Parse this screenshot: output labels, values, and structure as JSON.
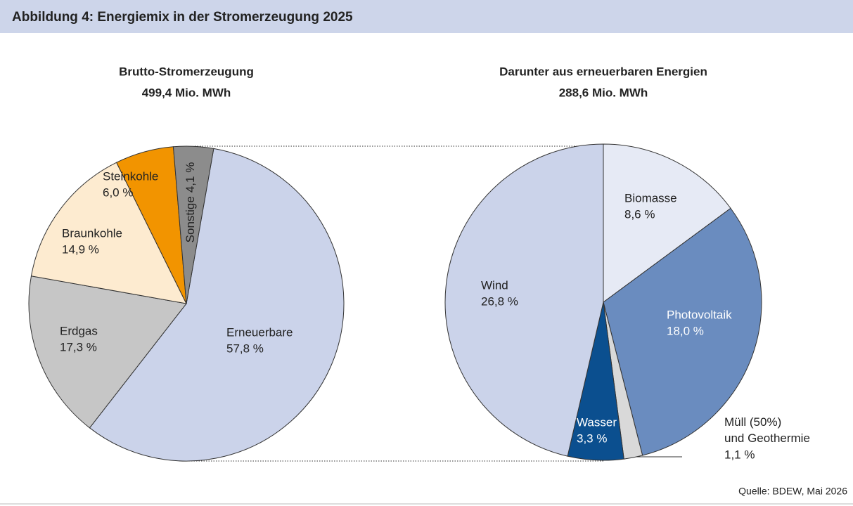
{
  "header": {
    "title": "Abbildung 4: Energiemix in der Stromerzeugung 2025"
  },
  "source": "Quelle: BDEW, Mai 2026",
  "chart_data": [
    {
      "type": "pie",
      "title": "Brutto-Stromerzeugung",
      "subtitle": "499,4 Mio. MWh",
      "categories": [
        "Erneuerbare",
        "Erdgas",
        "Braunkohle",
        "Steinkohle",
        "Sonstige"
      ],
      "values": [
        57.8,
        17.3,
        14.9,
        6.0,
        4.1
      ],
      "value_labels": [
        "57,8 %",
        "17,3 %",
        "14,9 %",
        "6,0 %",
        "4,1 %"
      ],
      "colors": [
        "#cbd3ea",
        "#c6c6c6",
        "#fdebd0",
        "#f29400",
        "#8c8c8c"
      ]
    },
    {
      "type": "pie",
      "title": "Darunter aus erneuerbaren Energien",
      "subtitle": "288,6 Mio. MWh",
      "categories": [
        "Biomasse",
        "Photovoltaik",
        "Müll (50%) und Geothermie",
        "Wasser",
        "Wind"
      ],
      "values": [
        8.6,
        18.0,
        1.1,
        3.3,
        26.8
      ],
      "value_labels": [
        "8,6 %",
        "18,0 %",
        "1,1 %",
        "3,3 %",
        "26,8 %"
      ],
      "colors": [
        "#e6eaf5",
        "#6a8cbf",
        "#d9d9d9",
        "#0b4f8f",
        "#cbd3ea"
      ]
    }
  ]
}
